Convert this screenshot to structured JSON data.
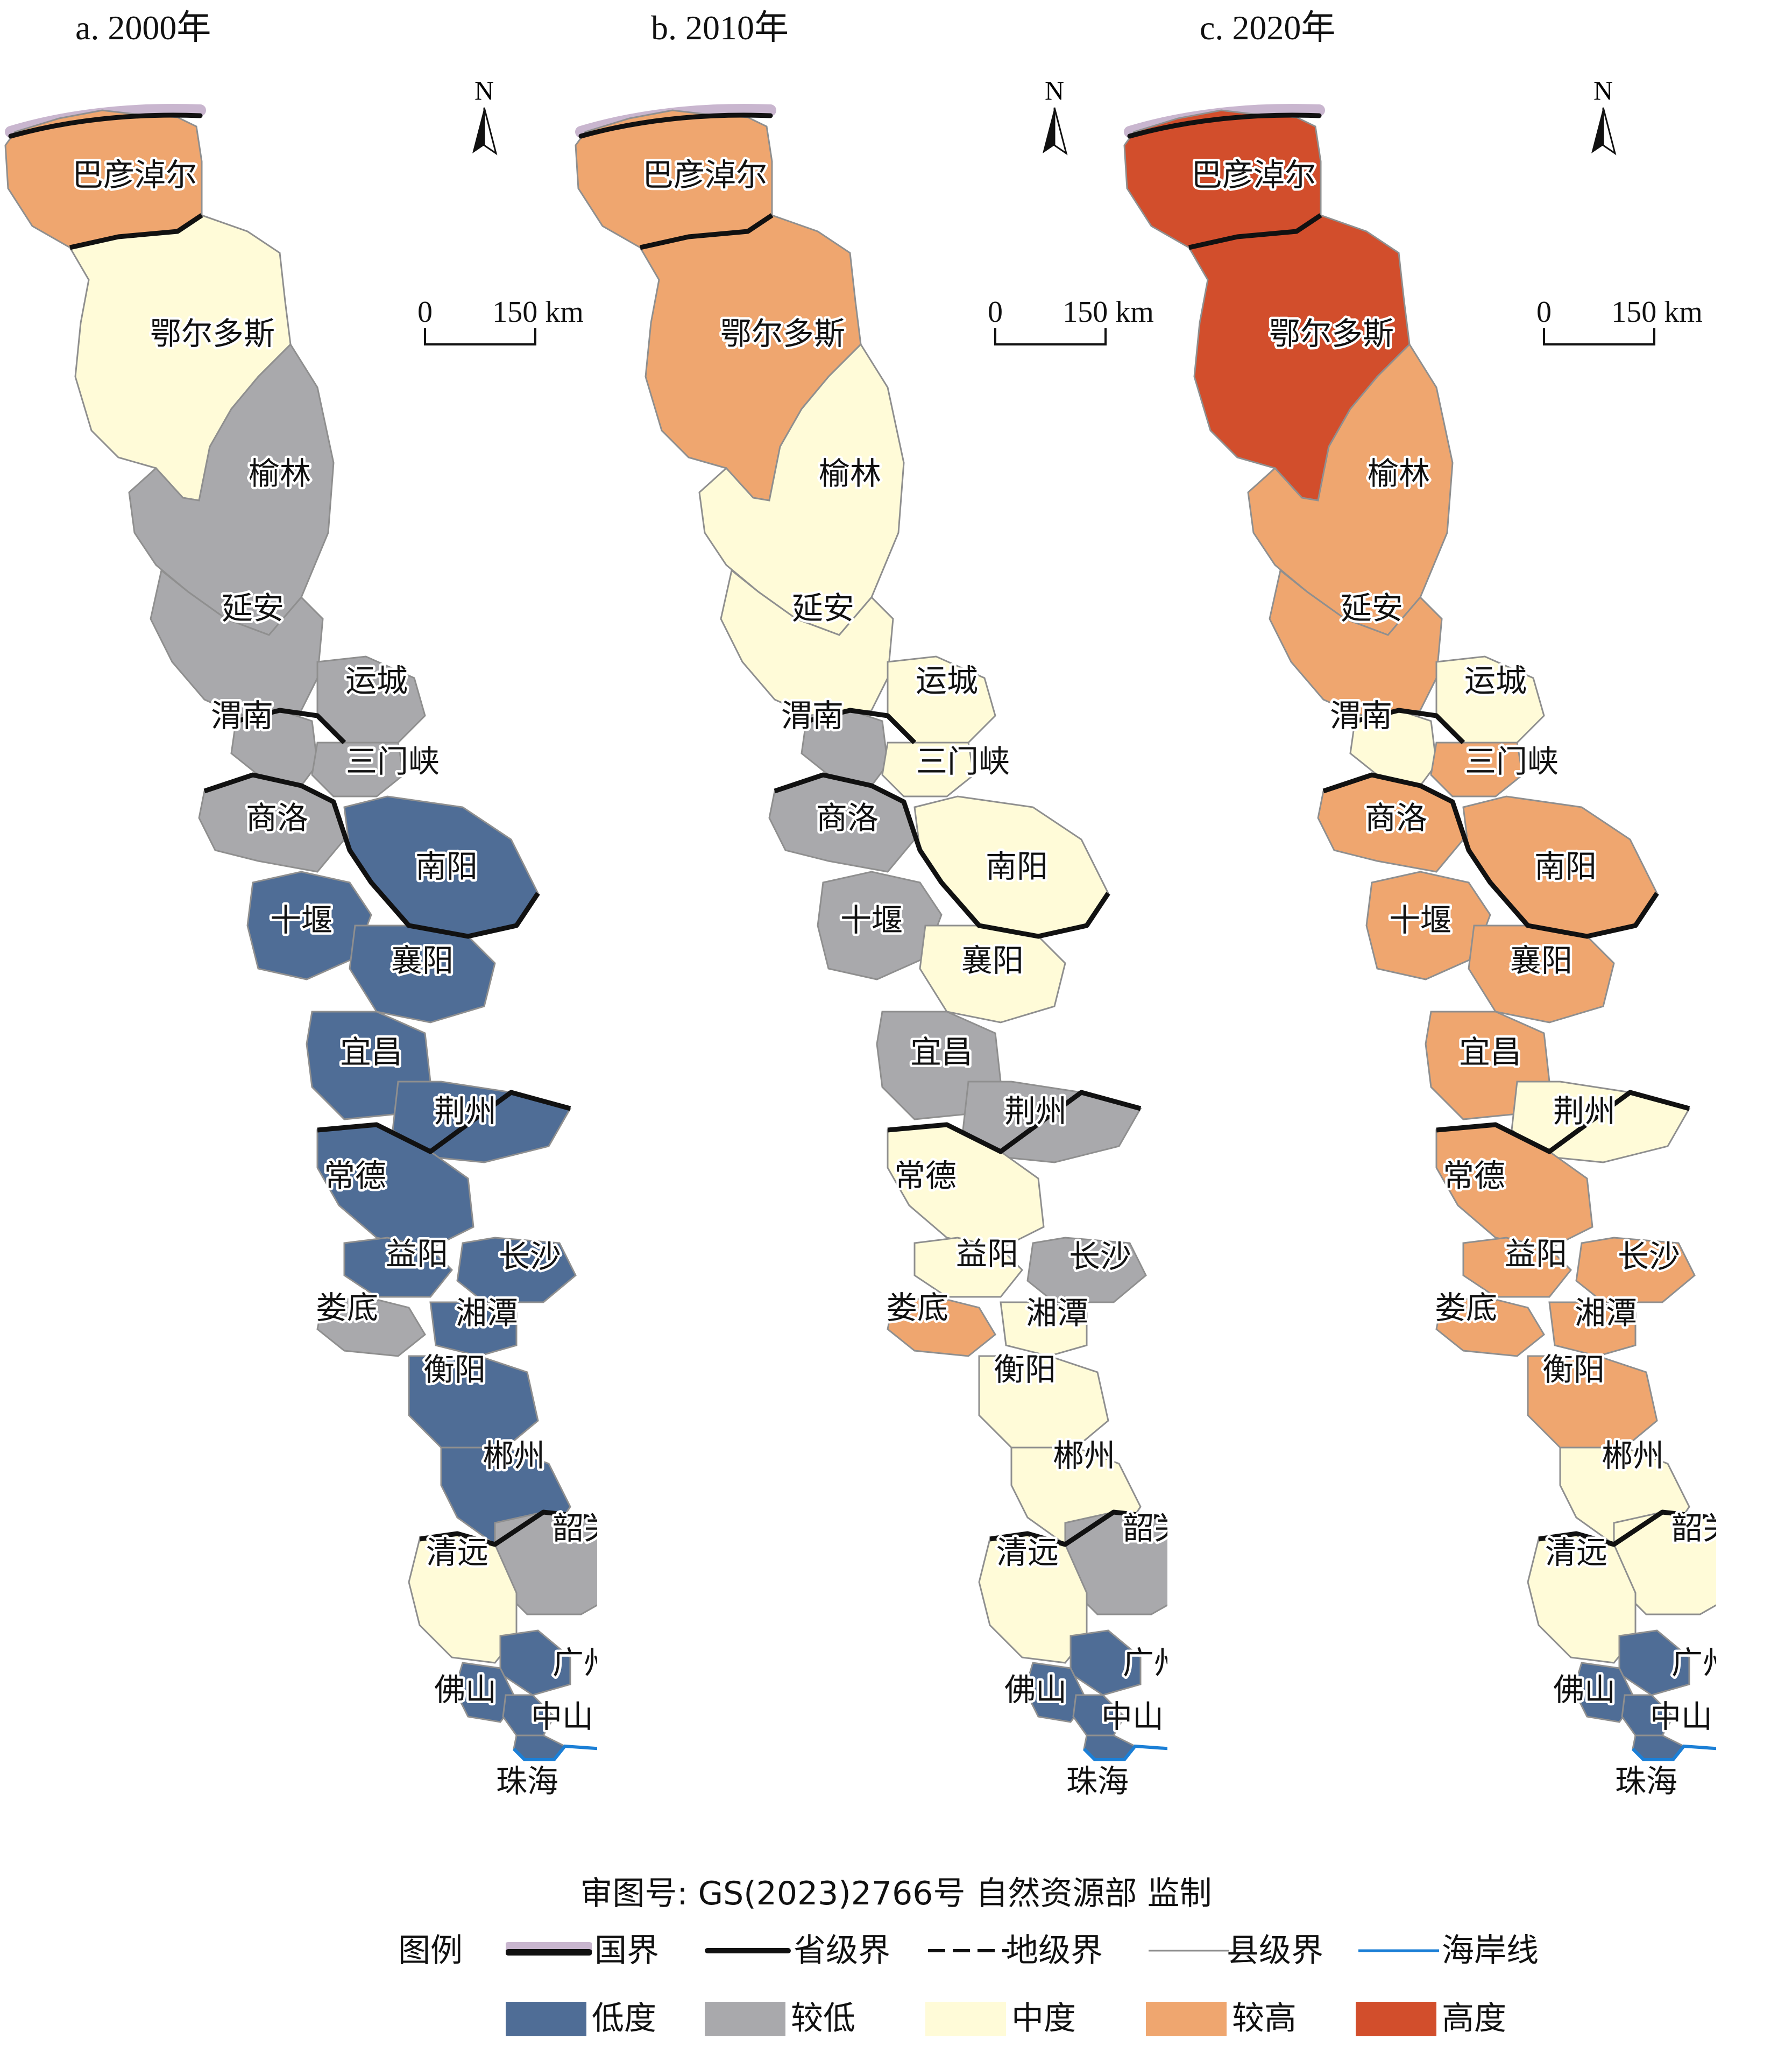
{
  "panels": [
    {
      "title": "a. 2000年"
    },
    {
      "title": "b. 2010年"
    },
    {
      "title": "c. 2020年"
    }
  ],
  "north_label": "N",
  "scale": {
    "zero": "0",
    "end": "150 km"
  },
  "regions": [
    {
      "name": "巴彦淖尔",
      "a": "较高",
      "b": "较高",
      "c": "高度"
    },
    {
      "name": "鄂尔多斯",
      "a": "中度",
      "b": "较高",
      "c": "高度"
    },
    {
      "name": "榆林",
      "a": "较低",
      "b": "中度",
      "c": "较高"
    },
    {
      "name": "延安",
      "a": "较低",
      "b": "中度",
      "c": "较高"
    },
    {
      "name": "渭南",
      "a": "较低",
      "b": "较低",
      "c": "中度"
    },
    {
      "name": "运城",
      "a": "较低",
      "b": "中度",
      "c": "中度"
    },
    {
      "name": "三门峡",
      "a": "较低",
      "b": "中度",
      "c": "较高"
    },
    {
      "name": "商洛",
      "a": "较低",
      "b": "较低",
      "c": "较高"
    },
    {
      "name": "南阳",
      "a": "低度",
      "b": "中度",
      "c": "较高"
    },
    {
      "name": "十堰",
      "a": "低度",
      "b": "较低",
      "c": "较高"
    },
    {
      "name": "襄阳",
      "a": "低度",
      "b": "中度",
      "c": "较高"
    },
    {
      "name": "宜昌",
      "a": "低度",
      "b": "较低",
      "c": "较高"
    },
    {
      "name": "荆州",
      "a": "低度",
      "b": "较低",
      "c": "中度"
    },
    {
      "name": "常德",
      "a": "低度",
      "b": "中度",
      "c": "较高"
    },
    {
      "name": "益阳",
      "a": "低度",
      "b": "中度",
      "c": "较高"
    },
    {
      "name": "长沙",
      "a": "低度",
      "b": "较低",
      "c": "较高"
    },
    {
      "name": "娄底",
      "a": "较低",
      "b": "较高",
      "c": "较高"
    },
    {
      "name": "湘潭",
      "a": "低度",
      "b": "中度",
      "c": "较高"
    },
    {
      "name": "衡阳",
      "a": "低度",
      "b": "中度",
      "c": "较高"
    },
    {
      "name": "郴州",
      "a": "低度",
      "b": "中度",
      "c": "中度"
    },
    {
      "name": "韶关",
      "a": "较低",
      "b": "较低",
      "c": "中度"
    },
    {
      "name": "清远",
      "a": "中度",
      "b": "中度",
      "c": "中度"
    },
    {
      "name": "广州",
      "a": "低度",
      "b": "低度",
      "c": "低度"
    },
    {
      "name": "佛山",
      "a": "低度",
      "b": "低度",
      "c": "低度"
    },
    {
      "name": "中山",
      "a": "低度",
      "b": "低度",
      "c": "低度"
    },
    {
      "name": "珠海",
      "a": "低度",
      "b": "低度",
      "c": "低度"
    }
  ],
  "approval_text": "审图号: GS(2023)2766号 自然资源部 监制",
  "legend": {
    "title": "图例",
    "lines": [
      {
        "label": "国界",
        "icon": "national-border"
      },
      {
        "label": "省级界",
        "icon": "provincial-border"
      },
      {
        "label": "地级界",
        "icon": "prefecture-border"
      },
      {
        "label": "县级界",
        "icon": "county-border"
      },
      {
        "label": "海岸线",
        "icon": "coastline"
      }
    ],
    "classes": [
      {
        "label": "低度",
        "color": "#4f6d96"
      },
      {
        "label": "较低",
        "color": "#a9a9ac"
      },
      {
        "label": "中度",
        "color": "#fffbd8"
      },
      {
        "label": "较高",
        "color": "#efa66f"
      },
      {
        "label": "高度",
        "color": "#d24e2c"
      }
    ]
  }
}
